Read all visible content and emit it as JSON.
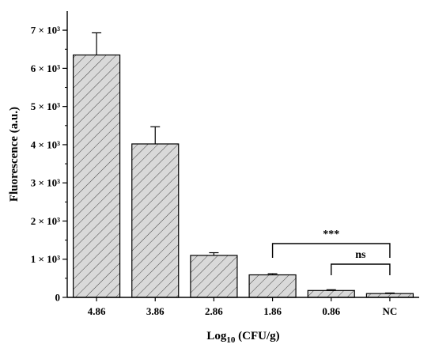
{
  "chart_data": {
    "type": "bar",
    "categories": [
      "4.86",
      "3.86",
      "2.86",
      "1.86",
      "0.86",
      "NC"
    ],
    "values": [
      6350,
      4020,
      1100,
      590,
      180,
      100
    ],
    "errors": [
      580,
      450,
      70,
      30,
      20,
      15
    ],
    "ylim": [
      0,
      7500
    ],
    "y_ticks": [
      0,
      1000,
      2000,
      3000,
      4000,
      5000,
      6000,
      7000
    ],
    "y_tick_labels": [
      "0",
      "1 × 10³",
      "2 × 10³",
      "3 × 10³",
      "4 × 10³",
      "5 × 10³",
      "6 × 10³",
      "7 × 10³"
    ],
    "ylabel": "Fluorescence (a.u.)",
    "xlabel": {
      "prefix": "Log",
      "subscript": "10",
      "suffix": " (CFU/g)"
    },
    "bar_fill": "#d9d9d9",
    "bar_pattern": "diagonal-hatch",
    "grid": false,
    "significance": [
      {
        "from": "1.86",
        "to": "NC",
        "label": "***"
      },
      {
        "from": "0.86",
        "to": "NC",
        "label": "ns"
      }
    ]
  }
}
